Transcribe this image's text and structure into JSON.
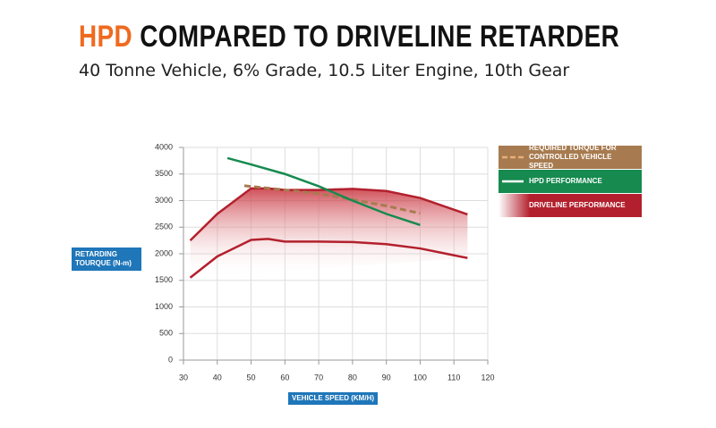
{
  "chart_data": {
    "type": "line",
    "title_highlight": "HPD",
    "title": "COMPARED TO DRIVELINE RETARDER",
    "subtitle": "40 Tonne Vehicle, 6% Grade, 10.5 Liter Engine, 10th Gear",
    "y_label": "RETARDING TOURQUE (N-m)",
    "x_label": "VEHICLE SPEED (KM/H)",
    "xlim": [
      30,
      120
    ],
    "xticks": [
      30,
      40,
      50,
      60,
      70,
      80,
      90,
      100,
      110,
      120
    ],
    "ylim": [
      0,
      4000
    ],
    "yticks": [
      0,
      500,
      1000,
      1500,
      2000,
      2500,
      3000,
      3500,
      4000
    ],
    "grid": true,
    "legend": "right",
    "series": [
      {
        "name": "REQUIRED TORQUE FOR CONTROLLED VEHICLE SPEED",
        "color": "#a77b4f",
        "dashed": true,
        "x": [
          48,
          60,
          70,
          80,
          90,
          100
        ],
        "values": [
          3280,
          3200,
          3130,
          3020,
          2900,
          2760
        ]
      },
      {
        "name": "HPD PERFORMANCE",
        "color": "#168a4f",
        "dashed": false,
        "x": [
          43,
          50,
          60,
          70,
          80,
          90,
          100
        ],
        "values": [
          3800,
          3680,
          3500,
          3270,
          3000,
          2750,
          2540
        ]
      },
      {
        "name": "DRIVELINE PERFORMANCE",
        "color": "#b3202d",
        "band": true,
        "x": [
          32,
          40,
          50,
          55,
          60,
          70,
          80,
          90,
          100,
          114
        ],
        "upper": [
          2250,
          2750,
          3230,
          3230,
          3200,
          3200,
          3220,
          3180,
          3050,
          2740
        ],
        "lower": [
          1550,
          1950,
          2260,
          2280,
          2230,
          2230,
          2220,
          2180,
          2100,
          1920
        ]
      }
    ]
  }
}
